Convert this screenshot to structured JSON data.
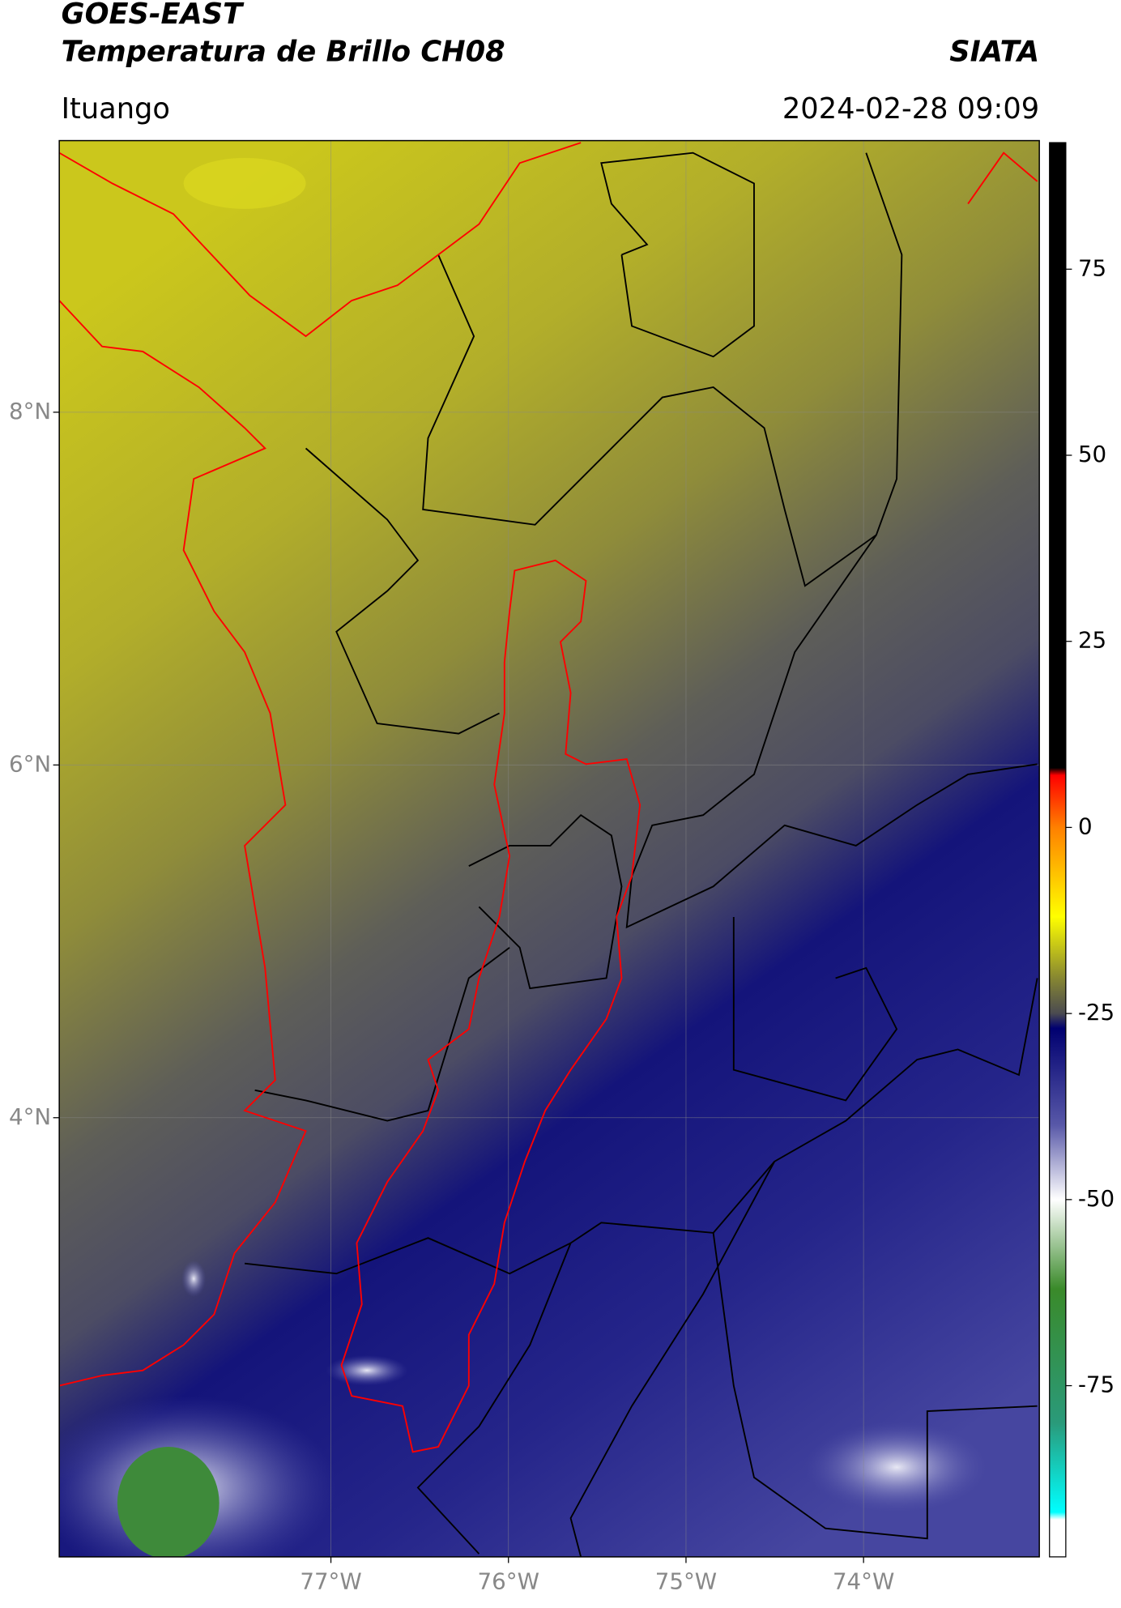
{
  "header": {
    "title": "GOES-EAST",
    "subtitle": "Temperatura de Brillo CH08",
    "credit": "SIATA",
    "region": "Ituango",
    "datetime": "2024-02-28 09:09"
  },
  "map": {
    "xlim": [
      -78.53,
      -73.01
    ],
    "ylim": [
      1.51,
      9.54
    ],
    "xticks": [
      {
        "value": -77,
        "label": "77°W"
      },
      {
        "value": -76,
        "label": "76°W"
      },
      {
        "value": -75,
        "label": "75°W"
      },
      {
        "value": -74,
        "label": "74°W"
      }
    ],
    "yticks": [
      {
        "value": 8,
        "label": "8°N"
      },
      {
        "value": 6,
        "label": "6°N"
      },
      {
        "value": 4,
        "label": "4°N"
      }
    ],
    "grid": true
  },
  "colorbar": {
    "range": [
      -98,
      92
    ],
    "ticks": [
      75,
      50,
      25,
      0,
      -25,
      -50,
      -75
    ],
    "stops": [
      {
        "value": 92,
        "color": "#000000"
      },
      {
        "value": 8,
        "color": "#000000"
      },
      {
        "value": 7,
        "color": "#ff0000"
      },
      {
        "value": 0,
        "color": "#ff8000"
      },
      {
        "value": -12,
        "color": "#ffff00"
      },
      {
        "value": -20,
        "color": "#8a8a30"
      },
      {
        "value": -25,
        "color": "#4a4a50"
      },
      {
        "value": -27,
        "color": "#000070"
      },
      {
        "value": -40,
        "color": "#5858a8"
      },
      {
        "value": -50,
        "color": "#ffffff"
      },
      {
        "value": -62,
        "color": "#3a8a2a"
      },
      {
        "value": -80,
        "color": "#2a9a7a"
      },
      {
        "value": -92,
        "color": "#00ffff"
      },
      {
        "value": -93,
        "color": "#ffffff"
      },
      {
        "value": -98,
        "color": "#ffffff"
      }
    ]
  }
}
